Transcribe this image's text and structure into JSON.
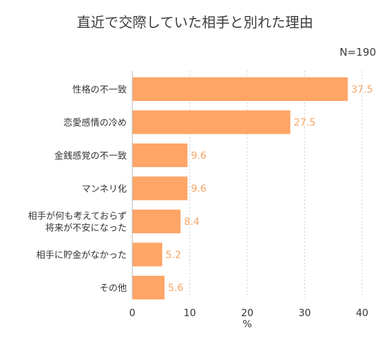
{
  "chart_data": {
    "type": "bar",
    "orientation": "horizontal",
    "title": "直近で交際していた相手と別れた理由",
    "note": "N=190",
    "xlabel": "%",
    "xlim": [
      0,
      40
    ],
    "xticks": [
      "0",
      "10",
      "20",
      "30",
      "40"
    ],
    "categories": [
      [
        "性格の不一致"
      ],
      [
        "恋愛感情の冷め"
      ],
      [
        "金銭感覚の不一致"
      ],
      [
        "マンネリ化"
      ],
      [
        "相手が何も考えておらず",
        "将来が不安になった"
      ],
      [
        "相手に貯金がなかった"
      ],
      [
        "その他"
      ]
    ],
    "values": [
      37.5,
      27.5,
      9.6,
      9.6,
      8.4,
      5.2,
      5.6
    ],
    "value_labels": [
      "37.5",
      "27.5",
      "9.6",
      "9.6",
      "8.4",
      "5.2",
      "5.6"
    ],
    "grid": "vertical dashed",
    "colors": {
      "bar": "#FFA566",
      "label": "#F5A464"
    }
  }
}
